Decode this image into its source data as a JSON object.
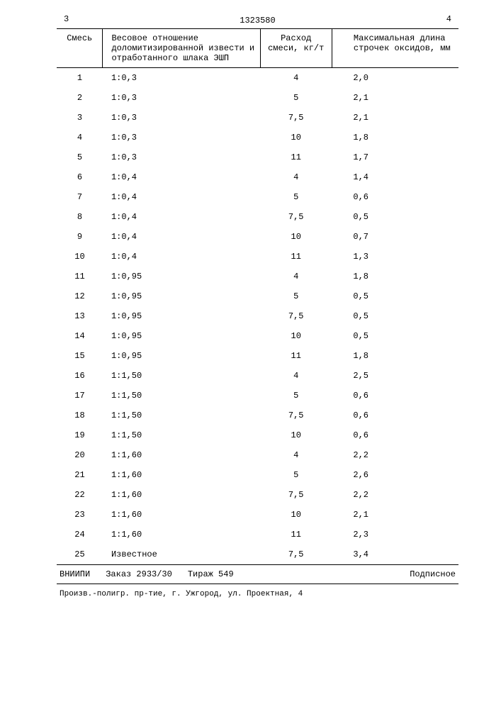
{
  "page_left": "3",
  "doc_number": "1323580",
  "page_right": "4",
  "columns": [
    "Смесь",
    "Весовое отношение доломитизированной извести и отработан­ного шлака ЭШП",
    "Расход смеси, кг/т",
    "Максимальная длина строчек оксидов, мм"
  ],
  "rows": [
    [
      "1",
      "1:0,3",
      "4",
      "2,0"
    ],
    [
      "2",
      "1:0,3",
      "5",
      "2,1"
    ],
    [
      "3",
      "1:0,3",
      "7,5",
      "2,1"
    ],
    [
      "4",
      "1:0,3",
      "10",
      "1,8"
    ],
    [
      "5",
      "1:0,3",
      "11",
      "1,7"
    ],
    [
      "6",
      "1:0,4",
      "4",
      "1,4"
    ],
    [
      "7",
      "1:0,4",
      "5",
      "0,6"
    ],
    [
      "8",
      "1:0,4",
      "7,5",
      "0,5"
    ],
    [
      "9",
      "1:0,4",
      "10",
      "0,7"
    ],
    [
      "10",
      "1:0,4",
      "11",
      "1,3"
    ],
    [
      "11",
      "1:0,95",
      "4",
      "1,8"
    ],
    [
      "12",
      "1:0,95",
      "5",
      "0,5"
    ],
    [
      "13",
      "1:0,95",
      "7,5",
      "0,5"
    ],
    [
      "14",
      "1:0,95",
      "10",
      "0,5"
    ],
    [
      "15",
      "1:0,95",
      "11",
      "1,8"
    ],
    [
      "16",
      "1:1,50",
      "4",
      "2,5"
    ],
    [
      "17",
      "1:1,50",
      "5",
      "0,6"
    ],
    [
      "18",
      "1:1,50",
      "7,5",
      "0,6"
    ],
    [
      "19",
      "1:1,50",
      "10",
      "0,6"
    ],
    [
      "20",
      "1:1,60",
      "4",
      "2,2"
    ],
    [
      "21",
      "1:1,60",
      "5",
      "2,6"
    ],
    [
      "22",
      "1:1,60",
      "7,5",
      "2,2"
    ],
    [
      "23",
      "1:1,60",
      "10",
      "2,1"
    ],
    [
      "24",
      "1:1,60",
      "11",
      "2,3"
    ],
    [
      "25",
      "Известное",
      "7,5",
      "3,4"
    ]
  ],
  "imprint": {
    "org": "ВНИИПИ",
    "order": "Заказ 2933/30",
    "tirage": "Тираж 549",
    "sign": "Подписное"
  },
  "footer": "Произв.-полигр. пр-тие, г. Ужгород, ул. Проектная, 4"
}
